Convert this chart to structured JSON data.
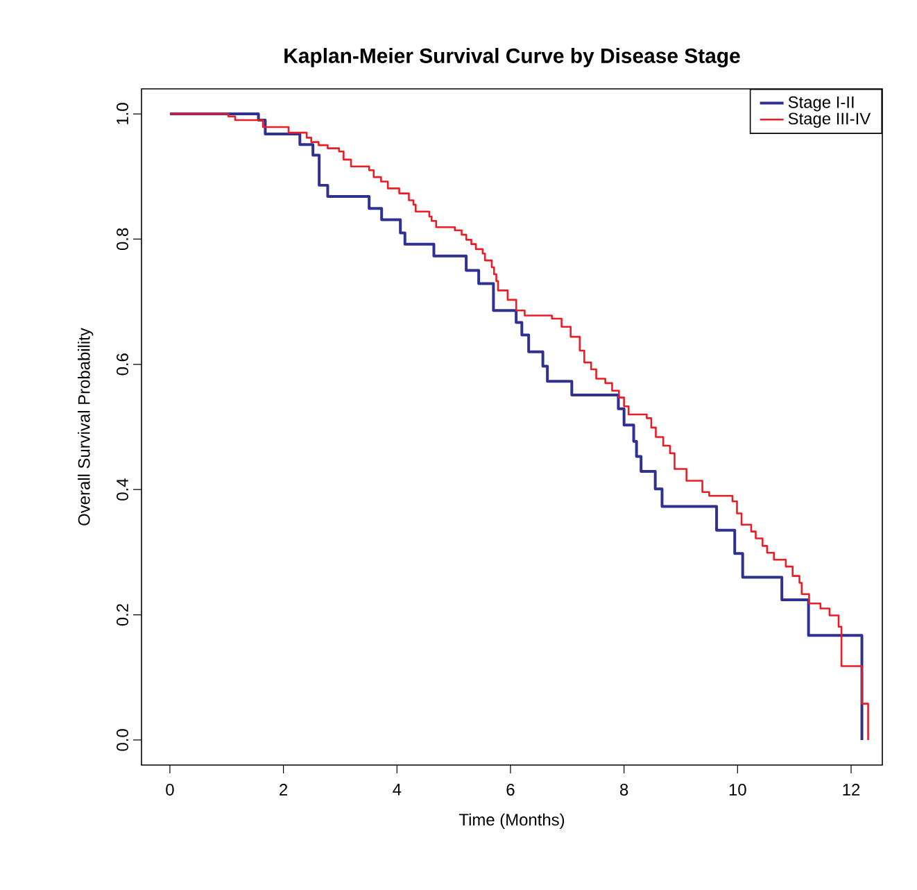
{
  "chart_data": {
    "type": "step",
    "title": "Kaplan-Meier Survival Curve by Disease Stage",
    "xlabel": "Time (Months)",
    "ylabel": "Overall Survival Probability",
    "xlim": [
      -0.5,
      12.55
    ],
    "ylim": [
      -0.04,
      1.04
    ],
    "xticks": [
      0,
      2,
      4,
      6,
      8,
      10,
      12
    ],
    "yticks": [
      {
        "value": 0,
        "label": "0.0"
      },
      {
        "value": 0.2,
        "label": "0.2"
      },
      {
        "value": 0.4,
        "label": "0.4"
      },
      {
        "value": 0.6,
        "label": "0.6"
      },
      {
        "value": 0.8,
        "label": "0.8"
      },
      {
        "value": 1,
        "label": "1.0"
      }
    ],
    "grid": false,
    "legend": "top right",
    "marker": "none",
    "line_style": "solid",
    "series": [
      {
        "name": "Stage I-II",
        "color": "#2e3192",
        "x": [
          0,
          1.56,
          1.68,
          2.29,
          2.52,
          2.63,
          2.78,
          3.51,
          3.73,
          4.06,
          4.14,
          4.65,
          5.22,
          5.44,
          5.7,
          6.1,
          6.2,
          6.32,
          6.57,
          6.65,
          7.08,
          7.9,
          8.0,
          8.17,
          8.22,
          8.3,
          8.55,
          8.67,
          9.63,
          9.95,
          10.09,
          10.78,
          11.25,
          12.19
        ],
        "values": [
          1.0,
          0.99,
          0.968,
          0.951,
          0.934,
          0.886,
          0.868,
          0.849,
          0.831,
          0.81,
          0.792,
          0.773,
          0.75,
          0.729,
          0.686,
          0.667,
          0.647,
          0.62,
          0.597,
          0.573,
          0.551,
          0.529,
          0.503,
          0.477,
          0.453,
          0.429,
          0.401,
          0.373,
          0.335,
          0.298,
          0.26,
          0.224,
          0.167,
          0
        ]
      },
      {
        "name": "Stage III-IV",
        "color": "#ed1c24",
        "x": [
          0,
          1.03,
          1.15,
          1.64,
          2.09,
          2.41,
          2.49,
          2.62,
          2.78,
          2.98,
          3.06,
          3.19,
          3.51,
          3.59,
          3.72,
          3.84,
          4.04,
          4.21,
          4.29,
          4.33,
          4.57,
          4.61,
          4.69,
          5.02,
          5.14,
          5.22,
          5.31,
          5.39,
          5.51,
          5.55,
          5.67,
          5.71,
          5.75,
          5.78,
          5.95,
          6.1,
          6.25,
          6.73,
          6.9,
          7.06,
          7.22,
          7.3,
          7.42,
          7.51,
          7.67,
          7.79,
          7.91,
          8.0,
          8.08,
          8.4,
          8.48,
          8.56,
          8.69,
          8.81,
          8.89,
          9.1,
          9.38,
          9.5,
          9.91,
          9.99,
          10.07,
          10.24,
          10.32,
          10.44,
          10.52,
          10.64,
          10.85,
          10.97,
          11.09,
          11.13,
          11.26,
          11.46,
          11.62,
          11.78,
          11.83,
          12.19,
          12.3
        ],
        "values": [
          1.0,
          0.996,
          0.99,
          0.979,
          0.97,
          0.962,
          0.955,
          0.95,
          0.945,
          0.94,
          0.927,
          0.916,
          0.91,
          0.899,
          0.892,
          0.881,
          0.873,
          0.862,
          0.855,
          0.844,
          0.836,
          0.829,
          0.819,
          0.814,
          0.807,
          0.799,
          0.792,
          0.784,
          0.777,
          0.766,
          0.755,
          0.744,
          0.733,
          0.718,
          0.703,
          0.686,
          0.678,
          0.673,
          0.66,
          0.644,
          0.622,
          0.603,
          0.592,
          0.577,
          0.57,
          0.558,
          0.547,
          0.533,
          0.52,
          0.514,
          0.499,
          0.484,
          0.47,
          0.458,
          0.433,
          0.414,
          0.396,
          0.39,
          0.381,
          0.362,
          0.344,
          0.333,
          0.322,
          0.31,
          0.299,
          0.288,
          0.277,
          0.262,
          0.251,
          0.233,
          0.218,
          0.21,
          0.199,
          0.181,
          0.118,
          0.058,
          0
        ]
      }
    ]
  }
}
